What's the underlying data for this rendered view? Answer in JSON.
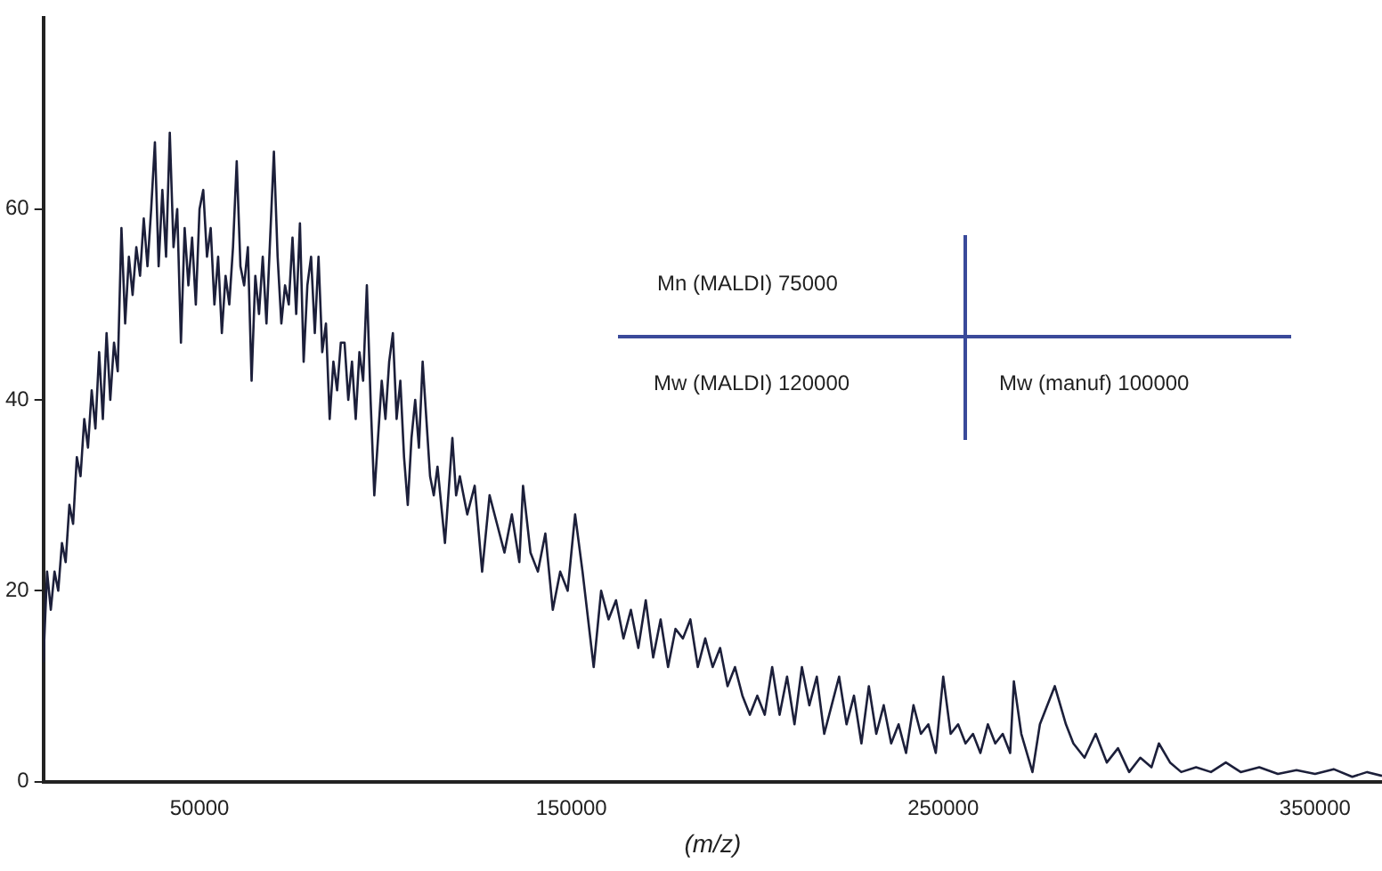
{
  "chart_data": {
    "type": "line",
    "xlabel": "(m/z)",
    "marker": "none",
    "grid": false,
    "legend": false,
    "xlim": [
      8000,
      368000
    ],
    "xticks": [
      50000,
      150000,
      250000,
      350000
    ],
    "ylim": [
      0,
      80
    ],
    "yticks": [
      0,
      20,
      40,
      60
    ],
    "annotations": [
      "Mn (MALDI) 75000",
      "Mw (MALDI) 120000",
      "Mw (manuf) 100000"
    ],
    "series": [
      {
        "color": "#1c1f3a",
        "x": [
          8000,
          9000,
          10000,
          11000,
          12000,
          13000,
          14000,
          15000,
          16000,
          17000,
          18000,
          19000,
          20000,
          21000,
          22000,
          23000,
          24000,
          25000,
          26000,
          27000,
          28000,
          29000,
          30000,
          31000,
          32000,
          33000,
          34000,
          35000,
          36000,
          37000,
          38000,
          39000,
          40000,
          41000,
          42000,
          43000,
          44000,
          45000,
          46000,
          47000,
          48000,
          49000,
          50000,
          51000,
          52000,
          53000,
          54000,
          55000,
          56000,
          57000,
          58000,
          59000,
          60000,
          61000,
          62000,
          63000,
          64000,
          65000,
          66000,
          67000,
          68000,
          69000,
          70000,
          71000,
          72000,
          73000,
          74000,
          75000,
          76000,
          77000,
          78000,
          79000,
          80000,
          81000,
          82000,
          83000,
          84000,
          85000,
          86000,
          87000,
          88000,
          89000,
          90000,
          91000,
          92000,
          93000,
          94000,
          95000,
          96000,
          97000,
          98000,
          99000,
          100000,
          101000,
          102000,
          103000,
          104000,
          105000,
          106000,
          107000,
          108000,
          109000,
          110000,
          111000,
          112000,
          113000,
          114000,
          116000,
          118000,
          119000,
          120000,
          121000,
          122000,
          124000,
          126000,
          128000,
          130000,
          132000,
          134000,
          136000,
          137000,
          139000,
          141000,
          143000,
          145000,
          147000,
          149000,
          151000,
          153000,
          156000,
          158000,
          160000,
          162000,
          164000,
          166000,
          168000,
          170000,
          172000,
          174000,
          176000,
          178000,
          180000,
          182000,
          184000,
          186000,
          188000,
          190000,
          192000,
          194000,
          196000,
          198000,
          200000,
          202000,
          204000,
          206000,
          208000,
          210000,
          212000,
          214000,
          216000,
          218000,
          220000,
          222000,
          224000,
          226000,
          228000,
          230000,
          232000,
          234000,
          236000,
          238000,
          240000,
          242000,
          244000,
          246000,
          248000,
          250000,
          252000,
          254000,
          256000,
          258000,
          260000,
          262000,
          264000,
          266000,
          268000,
          269000,
          271000,
          274000,
          276000,
          280000,
          283000,
          285000,
          288000,
          291000,
          294000,
          297000,
          300000,
          303000,
          306000,
          308000,
          311000,
          314000,
          318000,
          322000,
          326000,
          330000,
          335000,
          340000,
          345000,
          350000,
          355000,
          360000,
          364000,
          368000
        ],
        "values": [
          12.5,
          22,
          18,
          22,
          20,
          25,
          23,
          29,
          27,
          34,
          32,
          38,
          35,
          41,
          37,
          45,
          38,
          47,
          40,
          46,
          43,
          58,
          48,
          55,
          51,
          56,
          53,
          59,
          54,
          60,
          67,
          54,
          62,
          55,
          68,
          56,
          60,
          46,
          58,
          52,
          57,
          50,
          60,
          62,
          55,
          58,
          50,
          55,
          47,
          53,
          50,
          56,
          65,
          54,
          52,
          56,
          42,
          53,
          49,
          55,
          48,
          57,
          66,
          55,
          48,
          52,
          50,
          57,
          49,
          58.5,
          44,
          52,
          55,
          47,
          55,
          45,
          48,
          38,
          44,
          41,
          46,
          46,
          40,
          44,
          38,
          45,
          42,
          52,
          40,
          30,
          36,
          42,
          38,
          44,
          47,
          38,
          42,
          34,
          29,
          36,
          40,
          35,
          44,
          38,
          32,
          30,
          33,
          25,
          36,
          30,
          32,
          30,
          28,
          31,
          22,
          30,
          27,
          24,
          28,
          23,
          31,
          24,
          22,
          26,
          18,
          22,
          20,
          28,
          22,
          12,
          20,
          17,
          19,
          15,
          18,
          14,
          19,
          13,
          17,
          12,
          16,
          15,
          17,
          12,
          15,
          12,
          14,
          10,
          12,
          9,
          7,
          9,
          7,
          12,
          7,
          11,
          6,
          12,
          8,
          11,
          5,
          8,
          11,
          6,
          9,
          4,
          10,
          5,
          8,
          4,
          6,
          3,
          8,
          5,
          6,
          3,
          11,
          5,
          6,
          4,
          5,
          3,
          6,
          4,
          5,
          3,
          10.5,
          5,
          1,
          6,
          10,
          6,
          4,
          2.5,
          5,
          2,
          3.5,
          1,
          2.5,
          1.5,
          4,
          2,
          1,
          1.5,
          1,
          2,
          1,
          1.5,
          0.8,
          1.2,
          0.8,
          1.3,
          0.5,
          1,
          0.6
        ]
      }
    ]
  }
}
